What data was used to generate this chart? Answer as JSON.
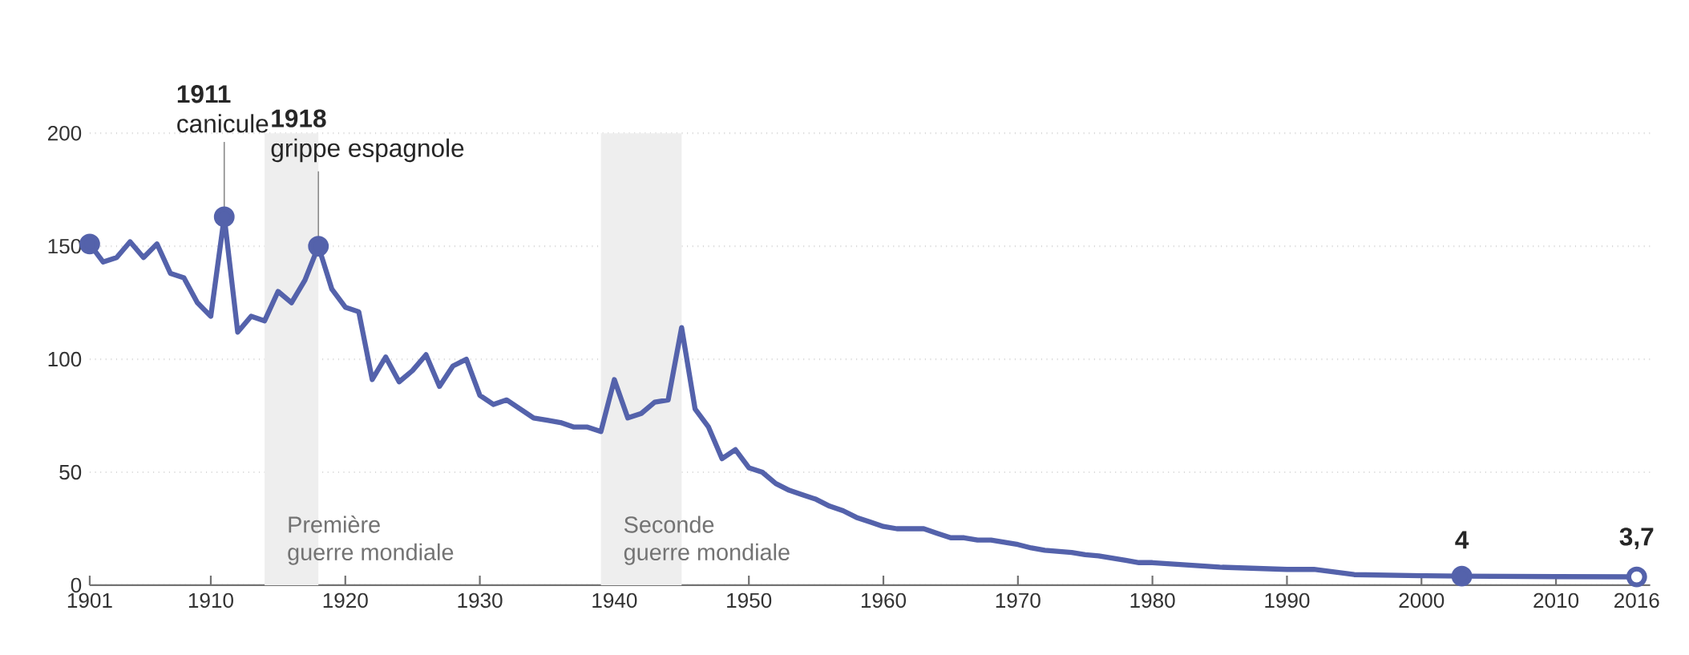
{
  "chart_data": {
    "type": "line",
    "series": [
      {
        "color": "#5462ab",
        "x": [
          1901,
          1902,
          1903,
          1904,
          1905,
          1906,
          1907,
          1908,
          1909,
          1910,
          1911,
          1912,
          1913,
          1914,
          1915,
          1916,
          1917,
          1918,
          1919,
          1920,
          1921,
          1922,
          1923,
          1924,
          1925,
          1926,
          1927,
          1928,
          1929,
          1930,
          1931,
          1932,
          1933,
          1934,
          1935,
          1936,
          1937,
          1938,
          1939,
          1940,
          1941,
          1942,
          1943,
          1944,
          1945,
          1946,
          1947,
          1948,
          1949,
          1950,
          1951,
          1952,
          1953,
          1954,
          1955,
          1956,
          1957,
          1958,
          1959,
          1960,
          1961,
          1962,
          1963,
          1964,
          1965,
          1966,
          1967,
          1968,
          1969,
          1970,
          1971,
          1972,
          1973,
          1974,
          1975,
          1976,
          1977,
          1978,
          1979,
          1980,
          1985,
          1990,
          1992,
          1995,
          2000,
          2003,
          2010,
          2016
        ],
        "values": [
          151,
          143,
          145,
          152,
          145,
          151,
          138,
          136,
          125,
          119,
          163,
          112,
          119,
          117,
          130,
          125,
          135,
          150,
          131,
          123,
          121,
          91,
          101,
          90,
          95,
          102,
          88,
          97,
          100,
          84,
          80,
          82,
          78,
          74,
          73,
          72,
          70,
          70,
          68,
          91,
          74,
          76,
          81,
          82,
          114,
          78,
          70,
          56,
          60,
          52,
          50,
          45,
          42,
          40,
          38,
          35,
          33,
          30,
          28,
          26,
          25,
          25,
          25,
          23,
          21,
          21,
          20,
          20,
          19,
          18,
          16.5,
          15.5,
          15,
          14.5,
          13.5,
          13,
          12,
          11,
          10,
          10,
          8,
          7,
          7,
          4.7,
          4.2,
          4,
          3.8,
          3.7
        ]
      },
      {
        "type": "scatter",
        "color": "#5462ab",
        "marker": "circle",
        "x": [
          1901,
          1911,
          1918,
          2003,
          2016
        ],
        "values": [
          151,
          163,
          150,
          4,
          3.7
        ],
        "colors": [
          "#5462ab",
          "#5462ab",
          "#5462ab",
          "#5462ab",
          "#ffffff"
        ],
        "value_labels": [
          null,
          null,
          null,
          "4",
          "3,7"
        ]
      }
    ],
    "xlim": [
      1901,
      2017
    ],
    "ylim": [
      0,
      200
    ],
    "xticks": [
      1901,
      1910,
      1920,
      1930,
      1940,
      1950,
      1960,
      1970,
      1980,
      1990,
      2000,
      2010,
      2016
    ],
    "yticks": [
      0,
      50,
      100,
      150,
      200
    ],
    "grid": "y",
    "bands": [
      {
        "axis": "x",
        "from": 1914,
        "to": 1918,
        "label": "Première guerre mondiale",
        "color": "#eeeeee"
      },
      {
        "axis": "x",
        "from": 1939,
        "to": 1945,
        "label": "Seconde guerre mondiale",
        "color": "#eeeeee"
      }
    ],
    "annotations": [
      {
        "text": "**1911** canicule",
        "x": 1911,
        "y": 163
      },
      {
        "text": "**1918** grippe espagnole",
        "x": 1918,
        "y": 150
      }
    ]
  }
}
